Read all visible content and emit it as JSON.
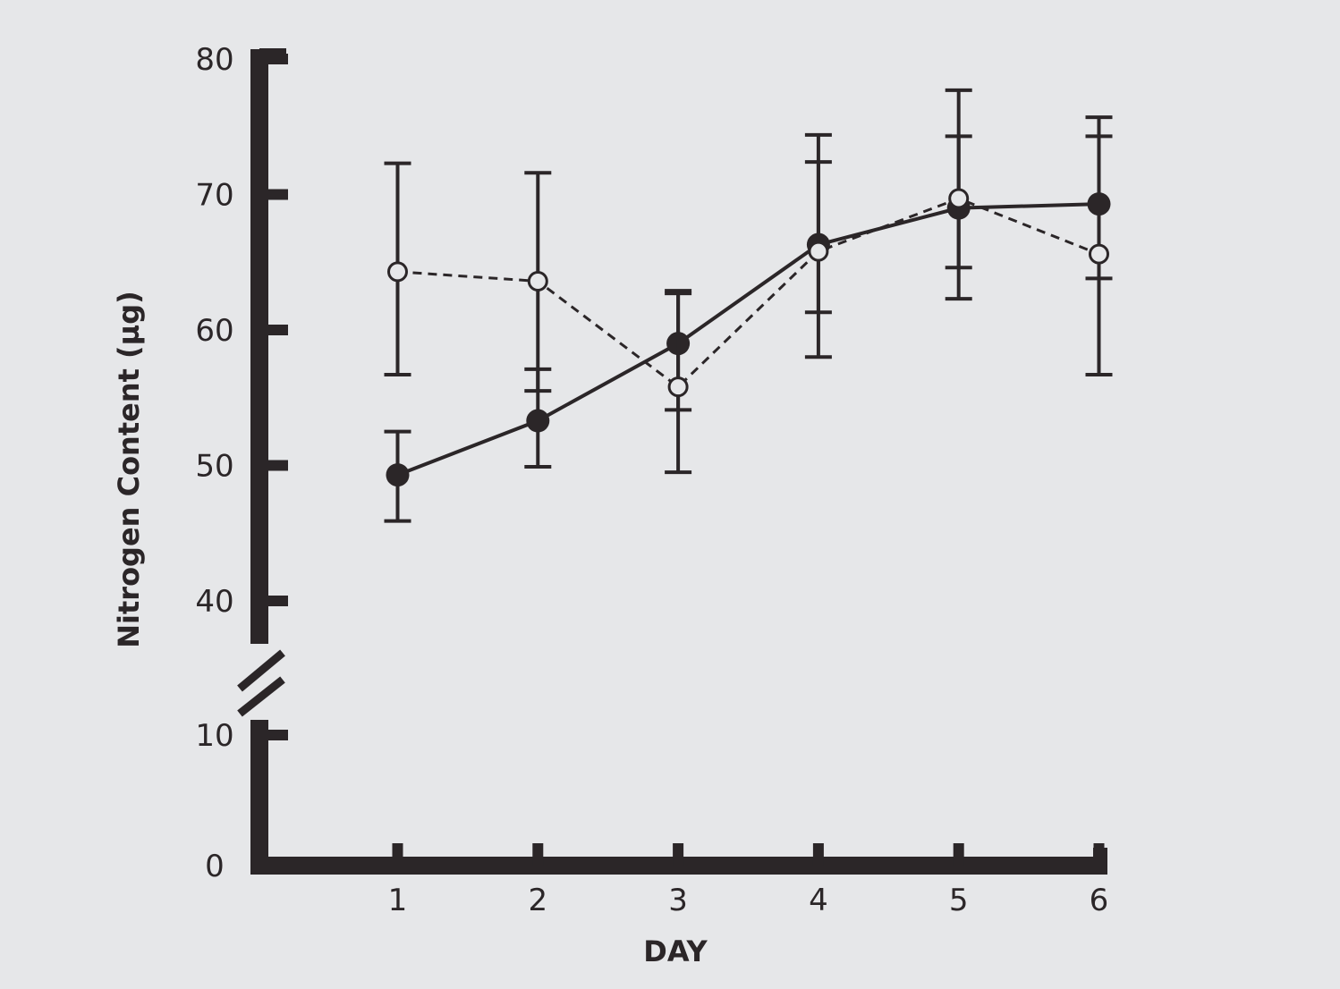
{
  "chart_data": {
    "type": "line",
    "title": "",
    "xlabel": "DAY",
    "ylabel": "Nitrogen Content (µg)",
    "x": [
      1,
      2,
      3,
      4,
      5,
      6
    ],
    "x_ticks": [
      "1",
      "2",
      "3",
      "4",
      "5",
      "6"
    ],
    "y_ticks": [
      "0",
      "10",
      "40",
      "50",
      "60",
      "70",
      "80"
    ],
    "ylim": [
      0,
      80
    ],
    "y_axis_break": [
      10,
      40
    ],
    "grid": false,
    "series": [
      {
        "marker": "filled-circle",
        "line": "solid",
        "values": [
          49.3,
          53.3,
          59.0,
          66.3,
          69.0,
          69.3
        ],
        "error_low": [
          45.9,
          49.9,
          49.5,
          58.0,
          62.3,
          56.7
        ],
        "error_high": [
          52.5,
          57.1,
          62.9,
          74.4,
          77.7,
          75.7
        ]
      },
      {
        "marker": "open-circle",
        "line": "dashed",
        "values": [
          64.3,
          63.6,
          55.8,
          65.8,
          69.7,
          65.6
        ],
        "error_low": [
          56.7,
          55.5,
          54.1,
          61.3,
          64.6,
          63.8
        ],
        "error_high": [
          72.3,
          71.6,
          62.7,
          72.4,
          74.3,
          74.3
        ]
      }
    ],
    "colors": {
      "ink": "#2b2628",
      "background": "#e6e7e9"
    }
  }
}
